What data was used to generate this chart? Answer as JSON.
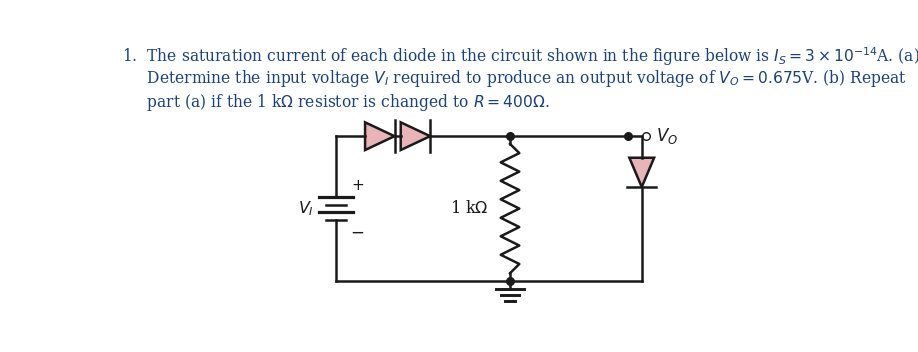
{
  "background_color": "#ffffff",
  "text_color": "#1a1a1a",
  "link_color": "#1a4080",
  "diode_fill": "#e8b4b8",
  "circuit_color": "#1a1a1a",
  "line_width": 1.8,
  "line1": "1.  The saturation current of each diode in the circuit shown in the figure below is $I_S = 3 \\times 10^{-14}$A. (a)",
  "line2": "     Determine the input voltage $V_I$ required to produce an output voltage of $V_O = 0.675$V. (b) Repeat",
  "line3": "     part (a) if the 1 k$\\Omega$ resistor is changed to $R = 400\\Omega$.",
  "label_VI": "$V_I$",
  "label_res": "1 k$\\Omega$",
  "label_VO": "$V_O$",
  "font_size_text": 11.2,
  "font_size_labels": 11.5
}
